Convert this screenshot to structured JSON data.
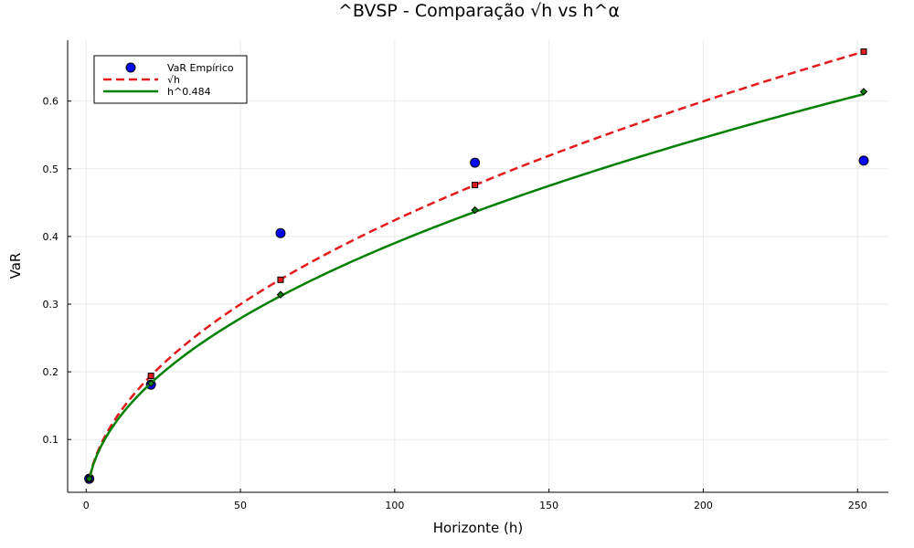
{
  "chart_data": {
    "type": "line",
    "title": "^BVSP - Comparação √h vs h^α",
    "xlabel": "Horizonte (h)",
    "ylabel": "VaR",
    "xlim": [
      -6,
      260
    ],
    "ylim": [
      0.022,
      0.69
    ],
    "xticks": [
      0,
      50,
      100,
      150,
      200,
      250
    ],
    "yticks": [
      0.1,
      0.2,
      0.3,
      0.4,
      0.5,
      0.6
    ],
    "grid": true,
    "legend_position": "top-left",
    "series": [
      {
        "name": "VaR Empírico",
        "kind": "scatter",
        "color": "#0000ff",
        "marker": "circle",
        "x": [
          1,
          21,
          63,
          126,
          252
        ],
        "y": [
          0.042,
          0.181,
          0.405,
          0.509,
          0.512
        ]
      },
      {
        "name": "√h",
        "kind": "line",
        "style": "dashed",
        "color": "#e41a1c",
        "marker": "square",
        "scale": 0.0424,
        "exponent": 0.5,
        "x": [
          1,
          21,
          63,
          126,
          252
        ],
        "y": [
          0.042,
          0.194,
          0.336,
          0.476,
          0.673
        ]
      },
      {
        "name": "h^0.484",
        "kind": "line",
        "style": "solid",
        "color": "#008000",
        "marker": "diamond",
        "scale": 0.042,
        "exponent": 0.484,
        "x": [
          1,
          21,
          63,
          126,
          252
        ],
        "y": [
          0.042,
          0.183,
          0.314,
          0.439,
          0.614
        ]
      }
    ]
  }
}
